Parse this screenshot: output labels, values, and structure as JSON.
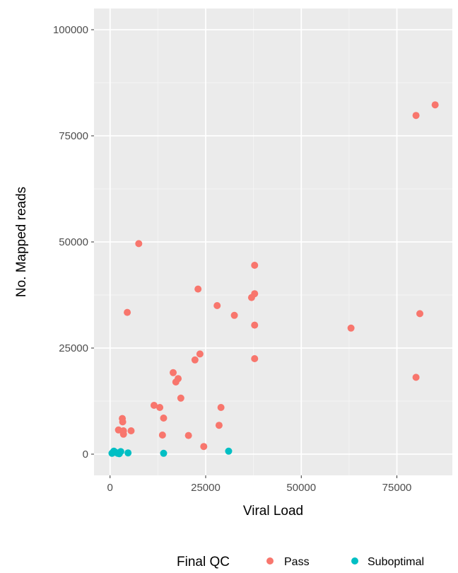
{
  "chart_data": {
    "type": "scatter",
    "xlabel": "Viral Load",
    "ylabel": "No. Mapped reads",
    "xlim": [
      -4200,
      89500
    ],
    "ylim": [
      -5000,
      105000
    ],
    "x_ticks": [
      0,
      25000,
      50000,
      75000
    ],
    "x_tick_labels": [
      "0",
      "25000",
      "50000",
      "75000"
    ],
    "y_ticks": [
      0,
      25000,
      50000,
      75000,
      100000
    ],
    "y_tick_labels": [
      "0",
      "25000",
      "50000",
      "75000",
      "100000"
    ],
    "grid": true,
    "background": "#EBEBEB",
    "legend": {
      "title": "Final QC",
      "position": "bottom",
      "entries": [
        "Pass",
        "Suboptimal"
      ]
    },
    "series": [
      {
        "name": "Pass",
        "color": "#F8766D",
        "points": [
          [
            85000,
            82300
          ],
          [
            80000,
            79800
          ],
          [
            81000,
            33100
          ],
          [
            80000,
            18100
          ],
          [
            63000,
            29700
          ],
          [
            7500,
            49600
          ],
          [
            37800,
            44500
          ],
          [
            37800,
            37800
          ],
          [
            37000,
            36900
          ],
          [
            37800,
            30400
          ],
          [
            37800,
            22500
          ],
          [
            32500,
            32700
          ],
          [
            28000,
            35000
          ],
          [
            23000,
            38900
          ],
          [
            23500,
            23600
          ],
          [
            22200,
            22200
          ],
          [
            4500,
            33400
          ],
          [
            16500,
            19200
          ],
          [
            17200,
            17000
          ],
          [
            17800,
            17800
          ],
          [
            18500,
            13200
          ],
          [
            11500,
            11500
          ],
          [
            13000,
            11000
          ],
          [
            14000,
            8500
          ],
          [
            13700,
            4500
          ],
          [
            20500,
            4400
          ],
          [
            24500,
            1800
          ],
          [
            29000,
            11000
          ],
          [
            28500,
            6800
          ],
          [
            3200,
            8400
          ],
          [
            3300,
            7600
          ],
          [
            2200,
            5700
          ],
          [
            3500,
            5500
          ],
          [
            5500,
            5500
          ],
          [
            3500,
            4700
          ]
        ]
      },
      {
        "name": "Suboptimal",
        "color": "#00BFC4",
        "points": [
          [
            500,
            200
          ],
          [
            1000,
            700
          ],
          [
            1500,
            400
          ],
          [
            2000,
            200
          ],
          [
            2800,
            600
          ],
          [
            4700,
            300
          ],
          [
            14000,
            200
          ],
          [
            31000,
            700
          ],
          [
            800,
            500
          ],
          [
            2400,
            100
          ]
        ]
      }
    ]
  }
}
